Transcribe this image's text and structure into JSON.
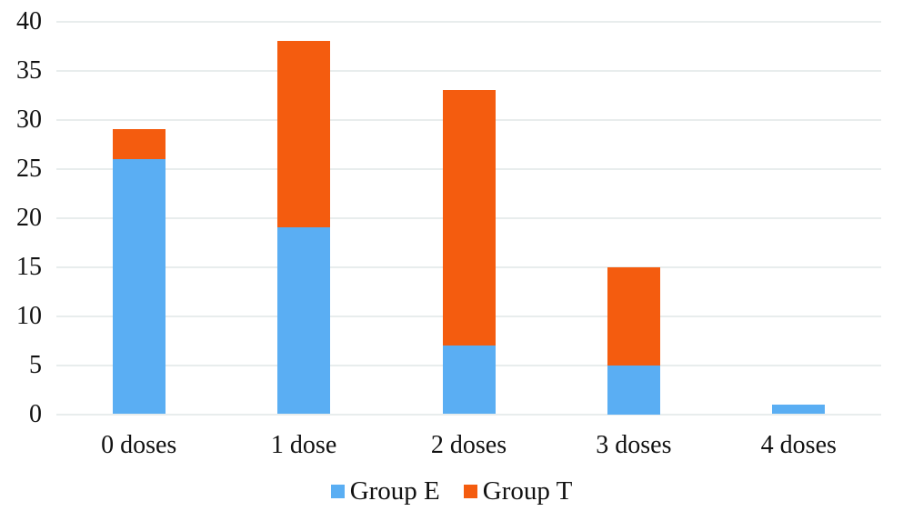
{
  "chart_data": {
    "type": "bar",
    "stacked": true,
    "title": "",
    "xlabel": "",
    "ylabel": "",
    "categories": [
      "0 doses",
      "1 dose",
      "2 doses",
      "3 doses",
      "4 doses"
    ],
    "series": [
      {
        "name": "Group E",
        "color": "#5AAEF3",
        "values": [
          26,
          19,
          7,
          5,
          1
        ]
      },
      {
        "name": "Group T",
        "color": "#F45C0F",
        "values": [
          3,
          19,
          26,
          10,
          0
        ]
      }
    ],
    "totals": [
      29,
      38,
      33,
      15,
      1
    ],
    "ylim": [
      0,
      40
    ],
    "yticks": [
      0,
      5,
      10,
      15,
      20,
      25,
      30,
      35,
      40
    ],
    "grid": "horizontal",
    "gridline_color": "#E8EDED",
    "legend_position": "bottom-center",
    "text_color": "#111111",
    "background_color": "#FFFFFF"
  }
}
